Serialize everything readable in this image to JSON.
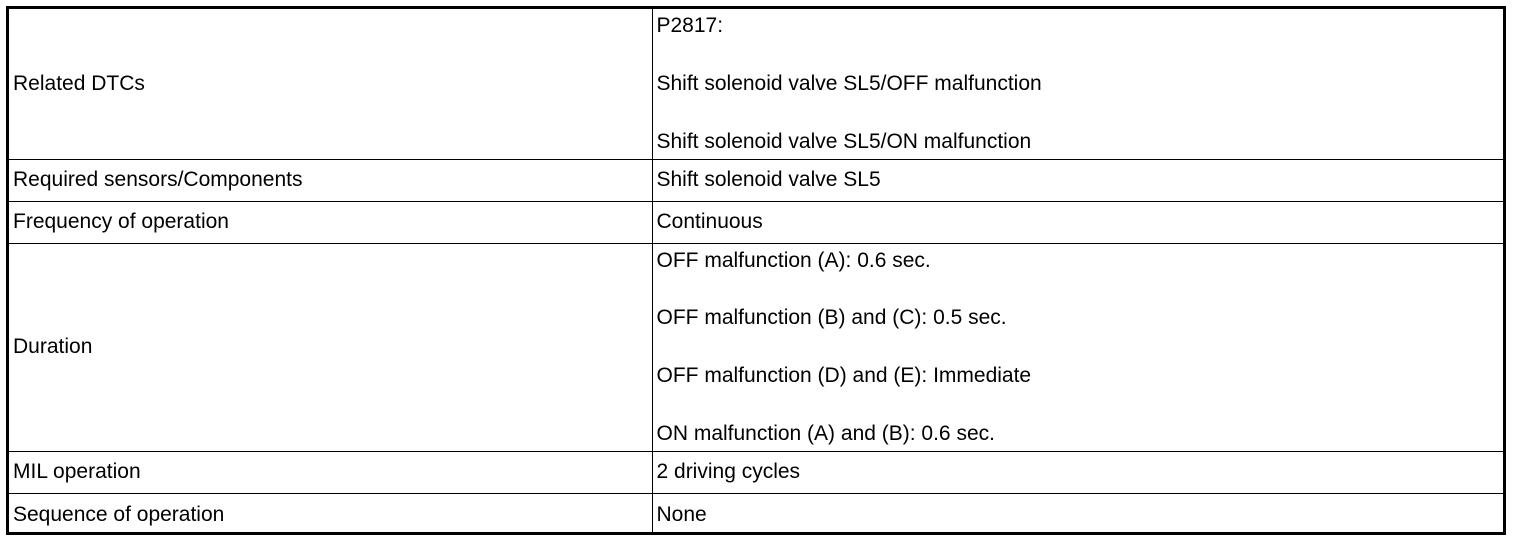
{
  "rows": [
    {
      "label": "Related DTCs",
      "values": [
        "P2817:",
        "Shift solenoid valve SL5/OFF malfunction",
        "Shift solenoid valve SL5/ON malfunction"
      ]
    },
    {
      "label": "Required sensors/Components",
      "values": [
        "Shift solenoid valve SL5"
      ]
    },
    {
      "label": "Frequency of operation",
      "values": [
        "Continuous"
      ]
    },
    {
      "label": "Duration",
      "values": [
        "OFF malfunction (A): 0.6 sec.",
        "OFF malfunction (B) and (C): 0.5 sec.",
        "OFF malfunction (D) and (E): Immediate",
        "ON malfunction (A) and (B): 0.6 sec."
      ]
    },
    {
      "label": "MIL operation",
      "values": [
        "2 driving cycles"
      ]
    },
    {
      "label": "Sequence of operation",
      "values": [
        "None"
      ]
    }
  ]
}
